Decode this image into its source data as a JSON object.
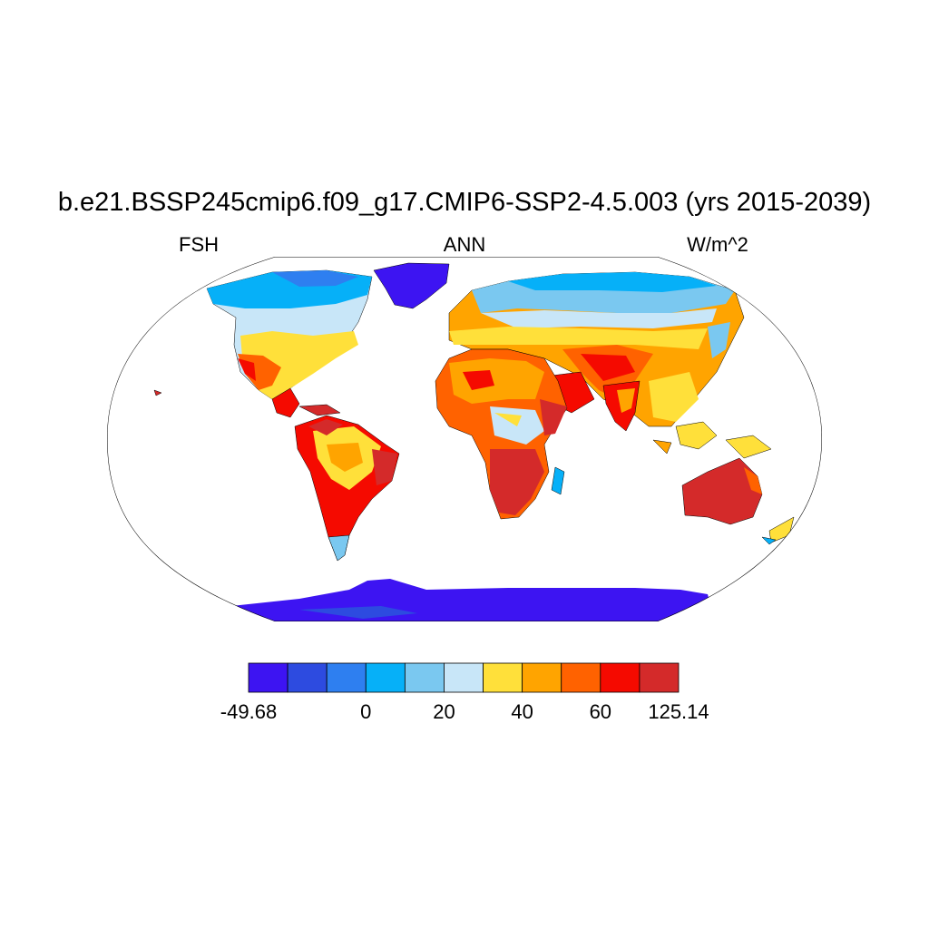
{
  "title": "b.e21.BSSP245cmip6.f09_g17.CMIP6-SSP2-4.5.003 (yrs 2015-2039)",
  "left_label": "FSH",
  "center_label": "ANN",
  "right_label": "W/m^2",
  "colorbar": {
    "colors": [
      "#3d14f2",
      "#2d4be0",
      "#2e7ff0",
      "#06b0f8",
      "#7ac8f0",
      "#c8e6f8",
      "#ffe03a",
      "#ffa400",
      "#ff6200",
      "#f50a00",
      "#d42a2a"
    ],
    "tick_labels": [
      {
        "text": "-49.68",
        "boundary": 0
      },
      {
        "text": "0",
        "boundary": 3
      },
      {
        "text": "20",
        "boundary": 5
      },
      {
        "text": "40",
        "boundary": 7
      },
      {
        "text": "60",
        "boundary": 9
      },
      {
        "text": "125.14",
        "boundary": 11
      }
    ]
  }
}
